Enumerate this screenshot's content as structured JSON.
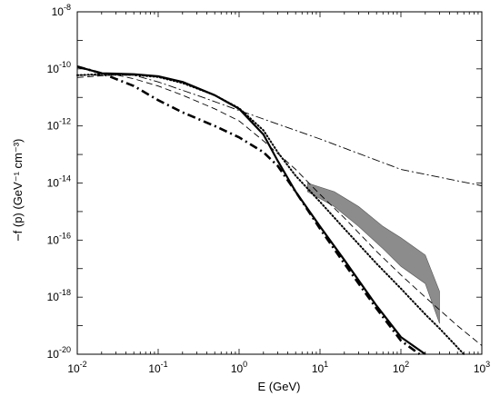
{
  "chart_data": {
    "type": "line",
    "title": "",
    "xlabel": "E (GeV)",
    "ylabel": "f (p) (GeV⁻¹ cm⁻³)",
    "x_scale": "log",
    "y_scale": "log",
    "xlim": [
      0.01,
      1000
    ],
    "ylim": [
      1e-20,
      1e-08
    ],
    "grid": false,
    "legend": "none",
    "x_ticks": [
      {
        "base": "10",
        "exp": "-2",
        "value": 0.01
      },
      {
        "base": "10",
        "exp": "-1",
        "value": 0.1
      },
      {
        "base": "10",
        "exp": "0",
        "value": 1
      },
      {
        "base": "10",
        "exp": "1",
        "value": 10
      },
      {
        "base": "10",
        "exp": "2",
        "value": 100
      },
      {
        "base": "10",
        "exp": "3",
        "value": 1000
      }
    ],
    "y_ticks": [
      {
        "base": "10",
        "exp": "-20",
        "value": 1e-20
      },
      {
        "base": "10",
        "exp": "-18",
        "value": 1e-18
      },
      {
        "base": "10",
        "exp": "-16",
        "value": 1e-16
      },
      {
        "base": "10",
        "exp": "-14",
        "value": 1e-14
      },
      {
        "base": "10",
        "exp": "-12",
        "value": 1e-12
      },
      {
        "base": "10",
        "exp": "-10",
        "value": 1e-10
      },
      {
        "base": "10",
        "exp": "-8",
        "value": 1e-08
      }
    ],
    "series": [
      {
        "style": "solid-thick",
        "x": [
          0.01,
          0.02,
          0.05,
          0.1,
          0.2,
          0.5,
          1,
          2,
          3,
          5,
          10,
          20,
          50,
          100,
          200
        ],
        "y": [
          1.2e-10,
          7e-11,
          6.5e-11,
          5.5e-11,
          3.5e-11,
          1.2e-11,
          4e-12,
          5e-13,
          6e-14,
          5e-15,
          3e-16,
          2e-17,
          5e-19,
          4e-20,
          1e-20
        ]
      },
      {
        "style": "dotted",
        "x": [
          0.01,
          0.02,
          0.05,
          0.1,
          0.2,
          0.5,
          1,
          2,
          3,
          5,
          10,
          20,
          50,
          100,
          200,
          300,
          600
        ],
        "y": [
          6e-11,
          6.5e-11,
          6.2e-11,
          5.2e-11,
          3.2e-11,
          1.2e-11,
          4.2e-12,
          7e-13,
          1.2e-13,
          1.8e-14,
          2.2e-15,
          2.5e-16,
          1.5e-17,
          2e-18,
          2.5e-19,
          8e-20,
          1e-20
        ]
      },
      {
        "style": "dash-dot-thick",
        "x": [
          0.01,
          0.02,
          0.05,
          0.1,
          0.2,
          0.5,
          1,
          2,
          3,
          5,
          10,
          20,
          50,
          100,
          170
        ],
        "y": [
          1.2e-10,
          7e-11,
          2.5e-11,
          8e-12,
          3e-12,
          1e-12,
          4e-13,
          1.2e-13,
          4e-14,
          5e-15,
          2.5e-16,
          1.5e-17,
          4e-19,
          3e-20,
          1e-20
        ]
      },
      {
        "style": "dashed-thin",
        "x": [
          0.01,
          0.03,
          0.05,
          0.1,
          0.2,
          0.5,
          1,
          2,
          5,
          10,
          20,
          50,
          100,
          200,
          500,
          1000
        ],
        "y": [
          5e-11,
          6.2e-11,
          4.5e-11,
          2.5e-11,
          1.2e-11,
          4e-12,
          1.5e-12,
          3e-13,
          3e-14,
          4e-15,
          6e-16,
          4e-17,
          6e-18,
          1e-18,
          1e-19,
          2e-20
        ]
      },
      {
        "style": "dash-dot-thin",
        "x": [
          0.01,
          0.05,
          0.1,
          0.3,
          1,
          10,
          100,
          1000
        ],
        "y": [
          6e-11,
          6e-11,
          3.5e-11,
          1.2e-11,
          3.5e-12,
          3.5e-13,
          3e-14,
          8e-15
        ]
      }
    ],
    "band": {
      "x": [
        7,
        15,
        30,
        60,
        100,
        200,
        300
      ],
      "upper": [
        1e-14,
        5e-15,
        1.5e-15,
        3e-16,
        1.2e-16,
        3e-17,
        1.6e-18
      ],
      "lower": [
        5e-15,
        1.5e-15,
        3e-16,
        5e-17,
        1.2e-17,
        3e-18,
        1.2e-19
      ],
      "color": "#8c8c8c"
    }
  }
}
